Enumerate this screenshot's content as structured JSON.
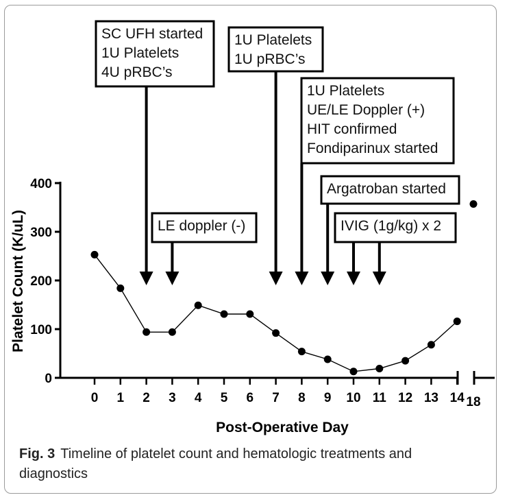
{
  "chart_data": {
    "type": "line",
    "xlabel": "Post-Operative Day",
    "ylabel": "Platelet Count  (K/uL)",
    "ylim": [
      0,
      400
    ],
    "y_ticks": [
      0,
      100,
      200,
      300,
      400
    ],
    "x_ticks": [
      "0",
      "1",
      "2",
      "3",
      "4",
      "5",
      "6",
      "7",
      "8",
      "9",
      "10",
      "11",
      "12",
      "13",
      "14",
      "18"
    ],
    "x_axis_break": "between 14 and 18",
    "grid": false,
    "points": [
      {
        "day": 0,
        "count": 253
      },
      {
        "day": 1,
        "count": 184
      },
      {
        "day": 2,
        "count": 94
      },
      {
        "day": 3,
        "count": 94
      },
      {
        "day": 4,
        "count": 149
      },
      {
        "day": 5,
        "count": 131
      },
      {
        "day": 6,
        "count": 131
      },
      {
        "day": 7,
        "count": 92
      },
      {
        "day": 8,
        "count": 54
      },
      {
        "day": 9,
        "count": 38
      },
      {
        "day": 10,
        "count": 13
      },
      {
        "day": 11,
        "count": 19
      },
      {
        "day": 12,
        "count": 35
      },
      {
        "day": 13,
        "count": 68
      },
      {
        "day": 14,
        "count": 116
      },
      {
        "day": 18,
        "count": 357
      }
    ],
    "annotations": [
      {
        "lines": [
          "SC UFH started",
          "1U Platelets",
          "4U pRBC’s"
        ],
        "day": 2
      },
      {
        "lines": [
          "LE doppler (-)"
        ],
        "day": 3
      },
      {
        "lines": [
          "1U Platelets",
          "1U pRBC’s"
        ],
        "day": 7
      },
      {
        "lines": [
          "1U Platelets",
          "UE/LE Doppler (+)",
          "HIT confirmed",
          "Fondiparinux started"
        ],
        "day": 8
      },
      {
        "lines": [
          "Argatroban started"
        ],
        "day": 9
      },
      {
        "lines": [
          "IVIG (1g/kg) x 2"
        ],
        "days": [
          10,
          11
        ]
      }
    ]
  },
  "caption": {
    "label": "Fig. 3",
    "text": "Timeline of platelet count and hematologic treatments and diagnostics"
  }
}
